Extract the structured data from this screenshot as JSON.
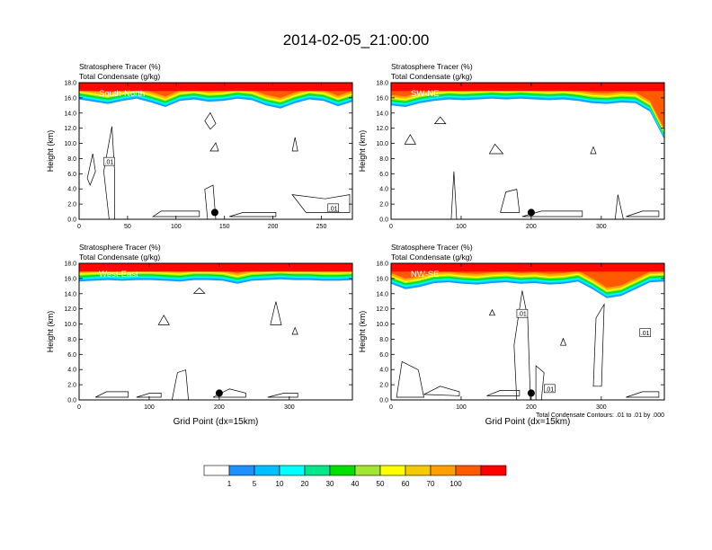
{
  "page_title": "2014-02-05_21:00:00",
  "footnote": "Total Condensate Contours: .01 to .01 by .000",
  "colorbar": {
    "colors": [
      "#ffffff",
      "#1e90ff",
      "#00bfff",
      "#00ffff",
      "#00e88a",
      "#00e000",
      "#a0e632",
      "#ffff00",
      "#f5c800",
      "#ffa000",
      "#ff5a00",
      "#ff0000"
    ],
    "labels": [
      "1",
      "5",
      "10",
      "20",
      "30",
      "40",
      "50",
      "60",
      "70",
      "100"
    ]
  },
  "chart_data": [
    {
      "type": "contour",
      "panel": "South-North",
      "label_line1": "Stratosphere Tracer   (%)",
      "label_line2": "Total Condensate   (g/kg)",
      "ylabel": "Height (km)",
      "xlabel": "",
      "xlim": [
        0,
        282
      ],
      "ylim": [
        0,
        18
      ],
      "x_ticks": [
        "0",
        "50",
        "100",
        "150",
        "200",
        "250"
      ],
      "y_ticks": [
        "0.0",
        "2.0",
        "4.0",
        "6.0",
        "8.0",
        "10.0",
        "12.0",
        "14.0",
        "16.0",
        "18.0"
      ],
      "tropopause_km": [
        15.8,
        15.5,
        15.2,
        15.6,
        15.9,
        15.4,
        14.8,
        15.6,
        15.8,
        15.5,
        15.6,
        15.9,
        15.7,
        15.0,
        14.6,
        15.3,
        15.8,
        15.6,
        14.9,
        15.5
      ],
      "contour_labels": [
        ".01",
        ".01"
      ],
      "marker_x": 140
    },
    {
      "type": "contour",
      "panel": "SW-NE",
      "label_line1": "Stratosphere Tracer   (%)",
      "label_line2": "Total Condensate   (g/kg)",
      "ylabel": "Height (km)",
      "xlabel": "",
      "xlim": [
        0,
        390
      ],
      "ylim": [
        0,
        18
      ],
      "x_ticks": [
        "0",
        "100",
        "200",
        "300"
      ],
      "y_ticks": [
        "0.0",
        "2.0",
        "4.0",
        "6.0",
        "8.0",
        "10.0",
        "12.0",
        "14.0",
        "16.0",
        "18.0"
      ],
      "tropopause_km": [
        15.0,
        14.8,
        15.3,
        15.6,
        15.8,
        15.7,
        15.8,
        15.9,
        15.8,
        15.9,
        15.8,
        15.7,
        15.8,
        15.6,
        15.3,
        15.2,
        15.4,
        15.3,
        14.2,
        10.5
      ],
      "contour_labels": [],
      "marker_x": 200
    },
    {
      "type": "contour",
      "panel": "West-East",
      "label_line1": "Stratosphere Tracer   (%)",
      "label_line2": "Total Condensate   (g/kg)",
      "ylabel": "Height (km)",
      "xlabel": "Grid Point (dx=15km)",
      "xlim": [
        0,
        390
      ],
      "ylim": [
        0,
        18
      ],
      "x_ticks": [
        "0",
        "100",
        "200",
        "300"
      ],
      "y_ticks": [
        "0.0",
        "2.0",
        "4.0",
        "6.0",
        "8.0",
        "10.0",
        "12.0",
        "14.0",
        "16.0",
        "18.0"
      ],
      "tropopause_km": [
        15.6,
        15.7,
        15.8,
        15.7,
        15.8,
        15.8,
        15.7,
        15.6,
        15.8,
        15.8,
        15.7,
        15.3,
        15.7,
        15.8,
        15.9,
        15.8,
        15.8,
        15.7,
        15.7,
        15.8
      ],
      "contour_labels": [],
      "marker_x": 200
    },
    {
      "type": "contour",
      "panel": "NW-SE",
      "label_line1": "Stratosphere Tracer   (%)",
      "label_line2": "Total Condensate   (g/kg)",
      "ylabel": "Height (km)",
      "xlabel": "Grid Point (dx=15km)",
      "xlim": [
        0,
        390
      ],
      "ylim": [
        0,
        18
      ],
      "x_ticks": [
        "0",
        "100",
        "200",
        "300"
      ],
      "y_ticks": [
        "0.0",
        "2.0",
        "4.0",
        "6.0",
        "8.0",
        "10.0",
        "12.0",
        "14.0",
        "16.0",
        "18.0"
      ],
      "tropopause_km": [
        15.3,
        14.6,
        14.9,
        15.4,
        15.5,
        15.3,
        15.2,
        15.4,
        15.5,
        15.3,
        15.4,
        15.2,
        15.3,
        15.6,
        14.6,
        13.4,
        13.7,
        14.6,
        15.5,
        15.6
      ],
      "contour_labels": [
        ".01",
        ".01",
        ".01"
      ],
      "marker_x": 200
    }
  ]
}
